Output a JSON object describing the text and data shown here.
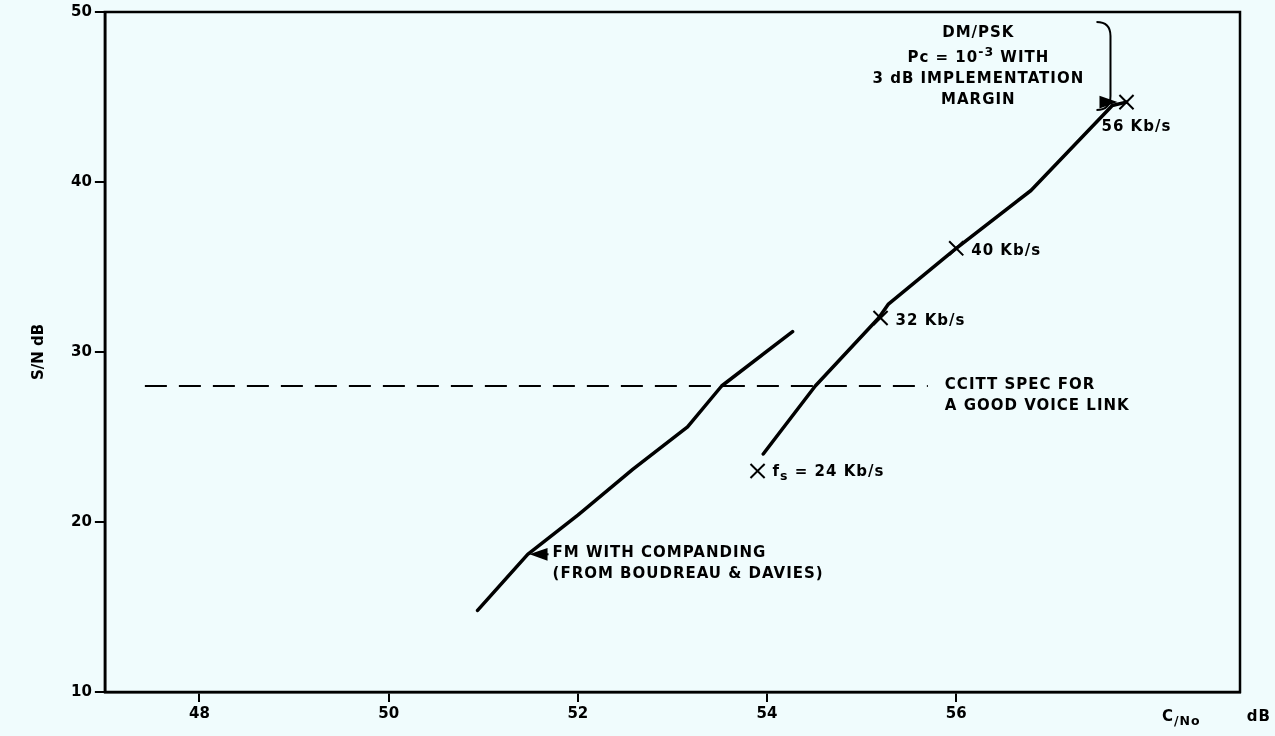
{
  "chart_data": {
    "type": "line",
    "xlabel": "C$_{/No}$ dB",
    "ylabel": "S/N dB",
    "xlim": [
      47,
      59
    ],
    "ylim": [
      10,
      50
    ],
    "xticks": [
      48,
      50,
      52,
      54,
      56
    ],
    "yticks": [
      10,
      20,
      30,
      40,
      50
    ],
    "series": [
      {
        "type": "line",
        "color": "#000000",
        "marker": "none",
        "x": [
          50.94,
          51.47,
          52.0,
          52.58,
          53.16,
          53.52,
          54.27
        ],
        "values": [
          14.8,
          18.1,
          20.4,
          23.1,
          25.6,
          28.0,
          31.2
        ]
      },
      {
        "type": "line",
        "color": "#000000",
        "marker": "none",
        "x": [
          53.96,
          54.51,
          55.18,
          55.28,
          56.0,
          56.79,
          57.65,
          57.8
        ],
        "values": [
          24.0,
          28.0,
          32.0,
          32.8,
          36.1,
          39.5,
          44.5,
          44.7
        ]
      },
      {
        "type": "scatter",
        "color": "#000000",
        "marker": "cross",
        "x": [
          53.9,
          55.2,
          56.0,
          57.8
        ],
        "values": [
          23.0,
          32.0,
          36.1,
          44.7
        ]
      }
    ],
    "ref_lines": [
      {
        "axis": "y",
        "value": 28,
        "label": "CCITT SPEC FOR\nA GOOD VOICE LINK",
        "line_style": "dashed",
        "color": "#000000"
      }
    ],
    "annotations": [
      {
        "text": "DM/PSK\nPc = 10$^{-3}$ WITH\n3 dB IMPLEMENTATION\nMARGIN",
        "x": 57.8,
        "y": 44.7
      },
      {
        "text": "56 Kb/s",
        "x": 57.8,
        "y": 44.7
      },
      {
        "text": "40 Kb/s",
        "x": 56.0,
        "y": 36.1
      },
      {
        "text": "32 Kb/s",
        "x": 55.2,
        "y": 32.0
      },
      {
        "text": "f$_{s}$ = 24 Kb/s",
        "x": 53.9,
        "y": 23.0
      },
      {
        "text": "FM WITH COMPANDING\n(FROM BOUDREAU & DAVIES)",
        "x": 51.5,
        "y": 18.1
      }
    ]
  }
}
